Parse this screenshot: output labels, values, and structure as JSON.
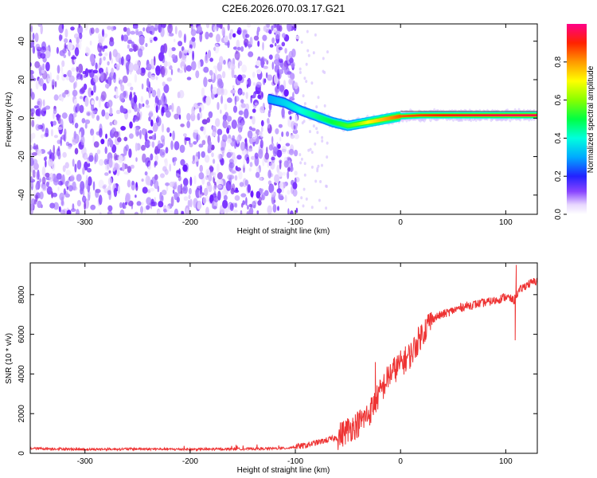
{
  "title": "C2E6.2026.070.03.17.G21",
  "chart_data": [
    {
      "type": "heatmap",
      "xlabel": "Height of straight line (km)",
      "ylabel": "Frequency (Hz)",
      "xlim": [
        -352,
        130
      ],
      "ylim": [
        -50,
        49
      ],
      "xticks": [
        -300,
        -200,
        -100,
        0,
        100
      ],
      "xtick_labels": [
        "-300",
        "-200",
        "-100",
        "0",
        "100"
      ],
      "yticks": [
        -40,
        -20,
        0,
        20,
        40
      ],
      "ytick_labels": [
        "-40",
        "-20",
        "0",
        "20",
        "40"
      ],
      "noise_region_x": [
        -352,
        -98
      ],
      "ridge": {
        "description_points_x": [
          -125,
          -110,
          -95,
          -80,
          -65,
          -50,
          -40,
          -30,
          -20,
          -10,
          0,
          20,
          40,
          60,
          80,
          100,
          120,
          130
        ],
        "frequency_hz": [
          10,
          8,
          4,
          1,
          -2,
          -4,
          -3,
          -2,
          -1,
          0,
          1,
          1.5,
          1.5,
          1.5,
          1.5,
          1.5,
          1.5,
          1.5
        ],
        "normalized_amplitude": [
          0.3,
          0.35,
          0.4,
          0.45,
          0.5,
          0.55,
          0.6,
          0.7,
          0.75,
          0.8,
          0.85,
          0.88,
          0.9,
          0.92,
          0.93,
          0.95,
          0.95,
          0.95
        ]
      },
      "colorbar": {
        "label": "Normalized spectral amplitude",
        "range": [
          0,
          1
        ],
        "ticks": [
          0.0,
          0.2,
          0.4,
          0.6,
          0.8
        ],
        "tick_labels": [
          "0.0",
          "0.2",
          "0.4",
          "0.6",
          "0.8"
        ]
      }
    },
    {
      "type": "line",
      "xlabel": "Height of straight line (km)",
      "ylabel": "SNR (10 * v/v)",
      "xlim": [
        -352,
        130
      ],
      "ylim": [
        0,
        9600
      ],
      "xticks": [
        -300,
        -200,
        -100,
        0,
        100
      ],
      "xtick_labels": [
        "-300",
        "-200",
        "-100",
        "0",
        "100"
      ],
      "yticks": [
        0,
        2000,
        4000,
        6000,
        8000
      ],
      "ytick_labels": [
        "0",
        "2000",
        "4000",
        "6000",
        "8000"
      ],
      "color": "#ee3333",
      "series": [
        {
          "name": "SNR",
          "x": [
            -352,
            -300,
            -250,
            -200,
            -150,
            -110,
            -90,
            -75,
            -60,
            -50,
            -40,
            -30,
            -25,
            -20,
            -10,
            0,
            10,
            20,
            30,
            40,
            50,
            60,
            70,
            80,
            90,
            100,
            108,
            110,
            115,
            120,
            130
          ],
          "y": [
            250,
            200,
            220,
            200,
            220,
            250,
            400,
            600,
            800,
            1200,
            1500,
            2000,
            2500,
            3000,
            4000,
            4500,
            5000,
            6000,
            6800,
            7000,
            7200,
            7400,
            7500,
            7600,
            7700,
            7900,
            7700,
            8000,
            8300,
            8500,
            8700
          ]
        }
      ],
      "annotations": [
        {
          "x": 110,
          "y": 9500,
          "note": "spike"
        },
        {
          "x": 109,
          "y": 5700,
          "note": "dip"
        },
        {
          "x": -24,
          "y": 4600,
          "note": "spike"
        }
      ]
    }
  ]
}
